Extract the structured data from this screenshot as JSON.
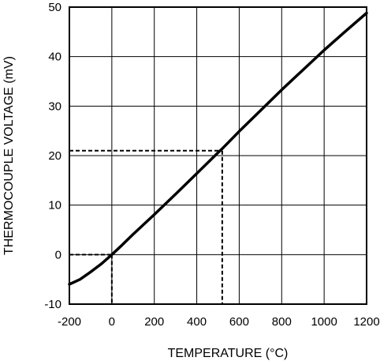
{
  "chart_data": {
    "type": "line",
    "xlabel": "TEMPERATURE (°C)",
    "ylabel": "THERMOCOUPLE VOLTAGE (mV)",
    "xlim": [
      -200,
      1200
    ],
    "ylim": [
      -10,
      50
    ],
    "x_ticks": [
      -200,
      0,
      200,
      400,
      600,
      800,
      1000,
      1200
    ],
    "y_ticks": [
      -10,
      0,
      10,
      20,
      30,
      40,
      50
    ],
    "x_tick_labels": [
      "-200",
      "0",
      "200",
      "400",
      "600",
      "800",
      "1000",
      "1200"
    ],
    "y_tick_labels": [
      "-10",
      "0",
      "10",
      "20",
      "30",
      "40",
      "50"
    ],
    "grid": true,
    "series": [
      {
        "x": [
          -200,
          -150,
          -100,
          -50,
          0,
          50,
          100,
          200,
          300,
          400,
          500,
          520,
          600,
          700,
          800,
          900,
          1000,
          1100,
          1200
        ],
        "y": [
          -6.0,
          -5.0,
          -3.5,
          -1.9,
          0.0,
          2.0,
          4.1,
          8.1,
          12.2,
          16.4,
          20.6,
          21.4,
          24.9,
          29.1,
          33.3,
          37.3,
          41.3,
          45.1,
          48.8
        ],
        "color": "#000000"
      }
    ],
    "reference_points": [
      {
        "x": 0,
        "y": 0
      },
      {
        "x": 520,
        "y": 21
      }
    ]
  }
}
